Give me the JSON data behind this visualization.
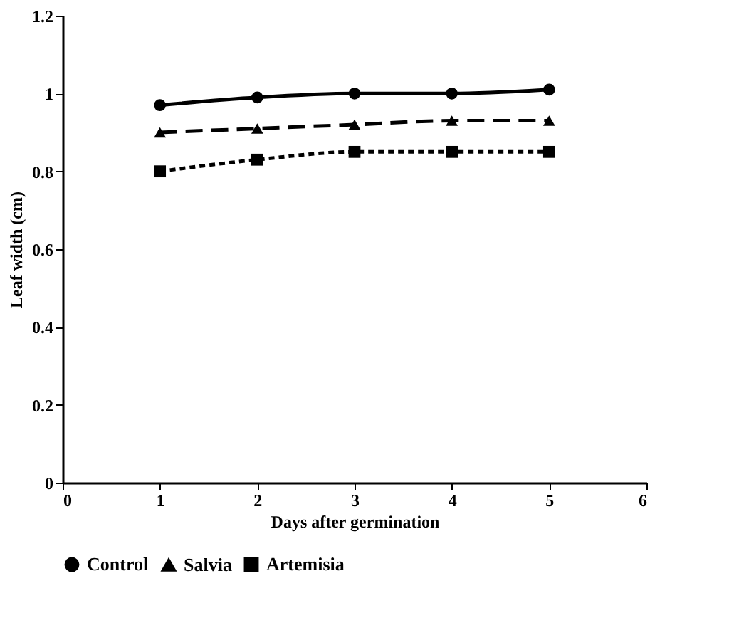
{
  "chart_data": {
    "type": "line",
    "xlabel": "Days after germination",
    "ylabel": "Leaf width (cm)",
    "x": [
      1,
      2,
      3,
      4,
      5
    ],
    "series": [
      {
        "name": "Control",
        "color": "#000000",
        "marker": "circle",
        "line_style": "solid",
        "values": [
          0.97,
          0.99,
          1.0,
          1.0,
          1.01
        ]
      },
      {
        "name": "Salvia",
        "color": "#000000",
        "marker": "triangle",
        "line_style": "dashed",
        "values": [
          0.9,
          0.91,
          0.92,
          0.93,
          0.93
        ]
      },
      {
        "name": "Artemisia",
        "color": "#000000",
        "marker": "square",
        "line_style": "dotted",
        "values": [
          0.8,
          0.83,
          0.85,
          0.85,
          0.85
        ]
      }
    ],
    "xlim": [
      0,
      6
    ],
    "xticks": [
      0,
      1,
      2,
      3,
      4,
      5,
      6
    ],
    "ylim": [
      0,
      1.2
    ],
    "yticks": [
      0,
      0.2,
      0.4,
      0.6,
      0.8,
      1,
      1.2
    ],
    "grid": false,
    "legend": "bottom"
  }
}
